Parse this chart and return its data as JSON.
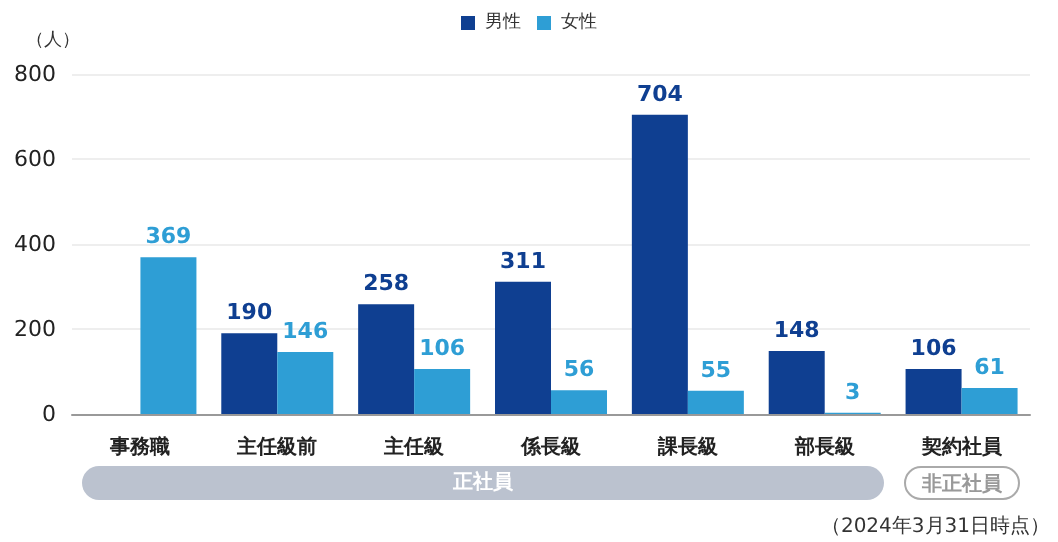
{
  "chart_data": {
    "type": "bar",
    "ylabel": "（人）",
    "categories": [
      "事務職",
      "主任級前",
      "主任級",
      "係長級",
      "課長級",
      "部長級",
      "契約社員"
    ],
    "series": [
      {
        "name": "男性",
        "color": "#0f3f91",
        "values": [
          null,
          190,
          258,
          311,
          704,
          148,
          106
        ]
      },
      {
        "name": "女性",
        "color": "#2e9ed5",
        "values": [
          369,
          146,
          106,
          56,
          55,
          3,
          61
        ]
      }
    ],
    "ylim": [
      0,
      800
    ],
    "yticks": [
      0,
      200,
      400,
      600,
      800
    ],
    "grid": "y",
    "legend": "top",
    "data_labels": true,
    "annotations": [
      "正社員",
      "非正社員",
      "（2024年3月31日時点）"
    ]
  }
}
